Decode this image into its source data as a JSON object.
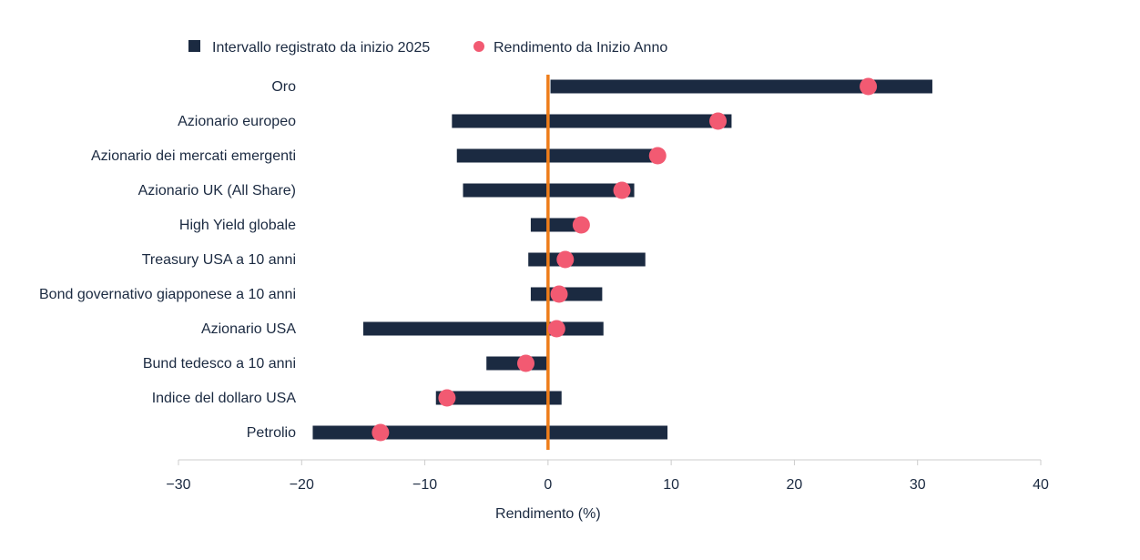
{
  "chart_data": {
    "type": "range-dot",
    "title": "",
    "xlabel": "Rendimento (%)",
    "ylabel": "",
    "xlim": [
      -30,
      40
    ],
    "xticks": [
      -30,
      -20,
      -10,
      0,
      10,
      20,
      30,
      40
    ],
    "grid": false,
    "legend_position": "top-left",
    "series": [
      {
        "name": "Intervallo registrato da inizio 2025",
        "kind": "range"
      },
      {
        "name": "Rendimento da Inizio Anno",
        "kind": "point"
      }
    ],
    "categories": [
      "Oro",
      "Azionario europeo",
      "Azionario dei mercati emergenti",
      "Azionario UK (All Share)",
      "High Yield globale",
      "Treasury USA a 10 anni",
      "Bond governativo giapponese a 10 anni",
      "Azionario USA",
      "Bund tedesco a 10 anni",
      "Indice del dollaro USA",
      "Petrolio"
    ],
    "range_min": [
      0.2,
      -7.8,
      -7.4,
      -6.9,
      -1.4,
      -1.6,
      -1.4,
      -15.0,
      -5.0,
      -9.1,
      -19.1
    ],
    "range_max": [
      31.2,
      14.9,
      8.6,
      7.0,
      2.7,
      7.9,
      4.4,
      4.5,
      -0.1,
      1.1,
      9.7
    ],
    "ytd": [
      26.0,
      13.8,
      8.9,
      6.0,
      2.7,
      1.4,
      0.9,
      0.7,
      -1.8,
      -8.2,
      -13.6
    ],
    "colors": {
      "range": "#1b2a41",
      "point": "#f25a72",
      "zero_line": "#ee7d1a",
      "axis": "#cccccc",
      "text": "#1b2a41"
    }
  }
}
